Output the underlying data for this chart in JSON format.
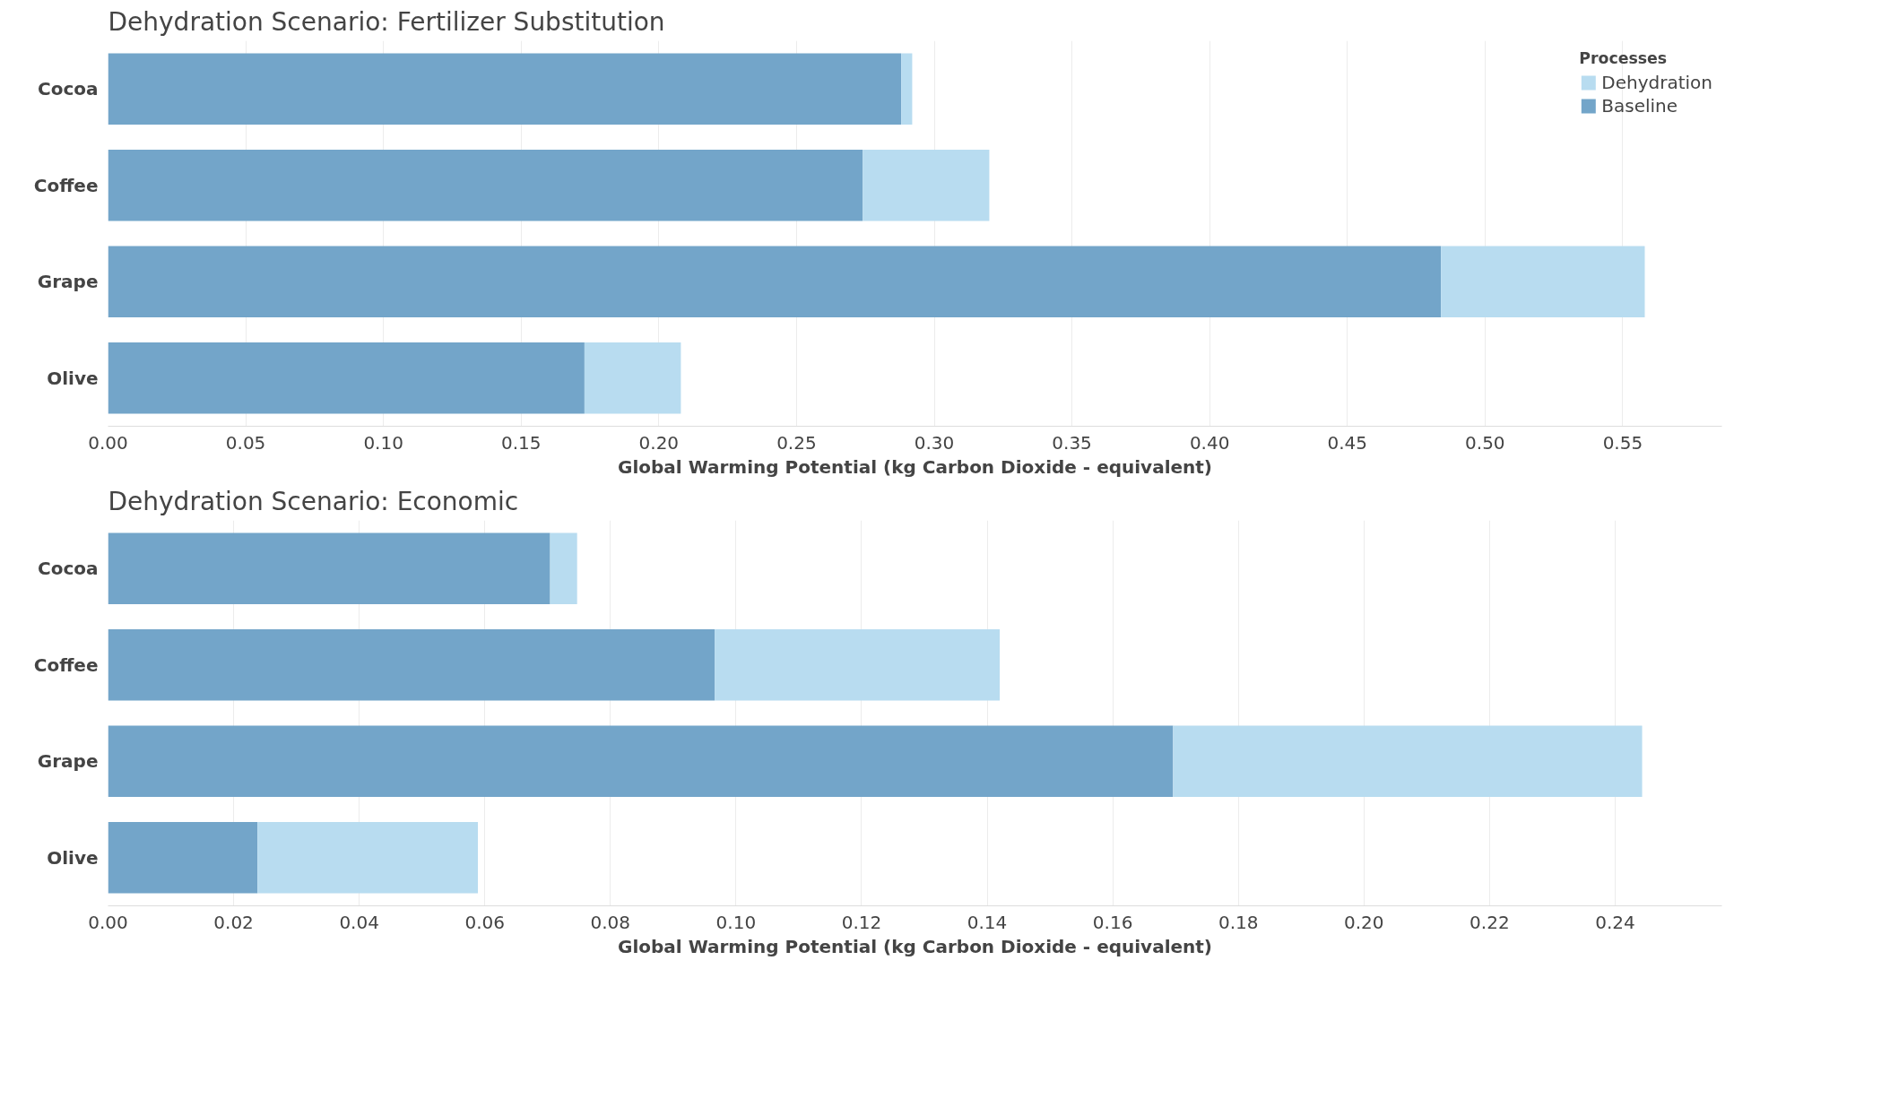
{
  "chart_data": [
    {
      "type": "bar",
      "orientation": "horizontal",
      "stacked": true,
      "title": "Dehydration Scenario: Fertilizer Substitution",
      "xlabel": "Global Warming Potential (kg Carbon Dioxide - equivalent)",
      "categories": [
        "Cocoa",
        "Coffee",
        "Grape",
        "Olive"
      ],
      "series": [
        {
          "name": "Baseline",
          "color": "#73a5c9",
          "values": [
            0.288,
            0.274,
            0.484,
            0.173
          ]
        },
        {
          "name": "Dehydration",
          "color": "#b8dcf0",
          "values": [
            0.004,
            0.046,
            0.074,
            0.035
          ]
        }
      ],
      "xlim": [
        0,
        0.586
      ],
      "xticks": [
        {
          "value": 0,
          "label": "0.00"
        },
        {
          "value": 0.05,
          "label": "0.05"
        },
        {
          "value": 0.1,
          "label": "0.10"
        },
        {
          "value": 0.15,
          "label": "0.15"
        },
        {
          "value": 0.2,
          "label": "0.20"
        },
        {
          "value": 0.25,
          "label": "0.25"
        },
        {
          "value": 0.3,
          "label": "0.30"
        },
        {
          "value": 0.35,
          "label": "0.35"
        },
        {
          "value": 0.4,
          "label": "0.40"
        },
        {
          "value": 0.45,
          "label": "0.45"
        },
        {
          "value": 0.5,
          "label": "0.50"
        },
        {
          "value": 0.55,
          "label": "0.55"
        }
      ],
      "grid": "x",
      "legend": "top right",
      "legend_title": "Processes"
    },
    {
      "type": "bar",
      "orientation": "horizontal",
      "stacked": true,
      "title": "Dehydration Scenario: Economic",
      "xlabel": "Global Warming Potential (kg Carbon Dioxide - equivalent)",
      "categories": [
        "Cocoa",
        "Coffee",
        "Grape",
        "Olive"
      ],
      "series": [
        {
          "color": "#73a5c9",
          "values": [
            0.0704,
            0.0966,
            0.1696,
            0.0238
          ]
        },
        {
          "color": "#b8dcf0",
          "values": [
            0.0043,
            0.0454,
            0.0747,
            0.0351
          ]
        }
      ],
      "xlim": [
        0,
        0.257
      ],
      "xticks": [
        {
          "value": 0,
          "label": "0.00"
        },
        {
          "value": 0.02,
          "label": "0.02"
        },
        {
          "value": 0.04,
          "label": "0.04"
        },
        {
          "value": 0.06,
          "label": "0.06"
        },
        {
          "value": 0.08,
          "label": "0.08"
        },
        {
          "value": 0.1,
          "label": "0.10"
        },
        {
          "value": 0.12,
          "label": "0.12"
        },
        {
          "value": 0.14,
          "label": "0.14"
        },
        {
          "value": 0.16,
          "label": "0.16"
        },
        {
          "value": 0.18,
          "label": "0.18"
        },
        {
          "value": 0.2,
          "label": "0.20"
        },
        {
          "value": 0.22,
          "label": "0.22"
        },
        {
          "value": 0.24,
          "label": "0.24"
        }
      ],
      "grid": "x"
    }
  ]
}
